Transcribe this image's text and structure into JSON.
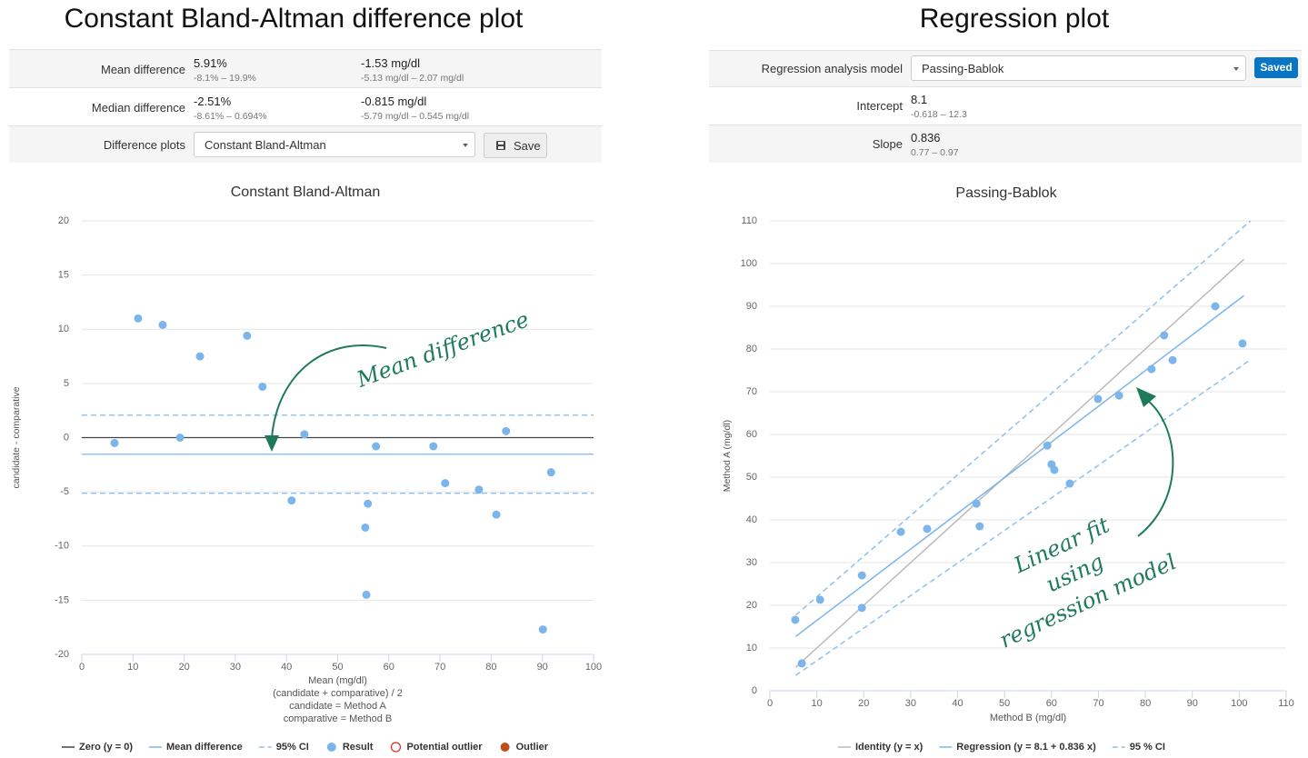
{
  "page_titles": [
    "Constant Bland-Altman difference plot",
    "Regression plot"
  ],
  "left_panel": {
    "rows": [
      {
        "label": "Mean difference",
        "value_pct": "5.91%",
        "ci_pct": "-8.1% – 19.9%",
        "value_abs": "-1.53 mg/dl",
        "ci_abs": "-5.13 mg/dl – 2.07 mg/dl"
      },
      {
        "label": "Median difference",
        "value_pct": "-2.51%",
        "ci_pct": "-8.61% – 0.694%",
        "value_abs": "-0.815 mg/dl",
        "ci_abs": "-5.79 mg/dl – 0.545 mg/dl"
      }
    ],
    "plot_label": "Difference plots",
    "plot_select": "Constant Bland-Altman",
    "button": "Save"
  },
  "right_panel": {
    "model_label": "Regression analysis model",
    "model_select": "Passing-Bablok",
    "button": "Saved",
    "rows": [
      {
        "label": "Intercept",
        "value": "8.1",
        "ci": "-0.618 – 12.3"
      },
      {
        "label": "Slope",
        "value": "0.836",
        "ci": "0.77 – 0.97"
      }
    ]
  },
  "chart_data": [
    {
      "type": "scatter",
      "title": "Constant Bland-Altman",
      "xlabel": [
        "Mean (mg/dl)",
        "(candidate + comparative) / 2",
        "candidate = Method A",
        "comparative = Method B"
      ],
      "ylabel": "candidate - comparative",
      "xlim": [
        0,
        100
      ],
      "ylim": [
        -20,
        20
      ],
      "xticks": [
        0,
        10,
        20,
        30,
        40,
        50,
        60,
        70,
        80,
        90,
        100
      ],
      "yticks": [
        -20,
        -15,
        -10,
        -5,
        0,
        5,
        10,
        15,
        20
      ],
      "grid": "y",
      "legend": "bottom",
      "lines": [
        {
          "name": "Zero (y = 0)",
          "color": "#444444",
          "style": "solid",
          "y": [
            0
          ]
        },
        {
          "name": "Mean difference",
          "color": "#7cb5ec",
          "style": "solid",
          "y": [
            -1.53
          ]
        },
        {
          "name": "95% CI",
          "color": "#8fc1ea",
          "style": "dashed",
          "y": [
            2.07,
            -5.13
          ]
        }
      ],
      "series": [
        {
          "name": "Result",
          "color": "#7cb5ec",
          "marker": "filled",
          "x": [
            6.4,
            11.0,
            15.8,
            19.2,
            23.1,
            32.3,
            35.3,
            41.0,
            43.5,
            55.9,
            55.4,
            55.6,
            57.5,
            68.7,
            71.0,
            77.6,
            81.0,
            82.9,
            90.1,
            91.7
          ],
          "values": [
            -0.5,
            11.0,
            10.4,
            0,
            7.5,
            9.4,
            4.7,
            -5.8,
            0.3,
            -6.1,
            -8.3,
            -14.5,
            -0.8,
            -0.8,
            -4.2,
            -4.8,
            -7.1,
            0.6,
            -17.7,
            -3.2
          ]
        },
        {
          "name": "Potential outlier",
          "color": "#e03030",
          "marker": "hollow"
        },
        {
          "name": "Outlier",
          "color": "#c0501a",
          "marker": "filled"
        }
      ],
      "annotation": [
        "Mean difference"
      ]
    },
    {
      "type": "scatter",
      "title": "Passing-Bablok",
      "xlabel": [
        "Method B (mg/dl)"
      ],
      "ylabel": "Method A (mg/dl)",
      "xlim": [
        0,
        110
      ],
      "ylim": [
        0,
        110
      ],
      "xticks": [
        0,
        10,
        20,
        30,
        40,
        50,
        60,
        70,
        80,
        90,
        100,
        110
      ],
      "yticks": [
        0,
        10,
        20,
        30,
        40,
        50,
        60,
        70,
        80,
        90,
        100,
        110
      ],
      "grid": "y",
      "legend": "bottom",
      "lines": [
        {
          "name": "Identity (y = x)",
          "color": "#bbbbbb",
          "style": "solid",
          "x": [
            5.5,
            101
          ],
          "values": [
            5.5,
            101
          ]
        },
        {
          "name": "Regression (y = 8.1 + 0.836 x)",
          "color": "#7cb5ec",
          "style": "solid",
          "x": [
            5.5,
            101
          ],
          "values": [
            12.7,
            92.5
          ]
        },
        {
          "name": "95 % CI",
          "color": "#8fc1ea",
          "style": "dashed",
          "x": [
            5.5,
            102.4
          ],
          "values": [
            17.7,
            110
          ]
        },
        {
          "color": "#8fc1ea",
          "style": "dashed",
          "x": [
            5.5,
            102
          ],
          "values": [
            3.6,
            77.2
          ]
        }
      ],
      "series": [
        {
          "color": "#7cb5ec",
          "marker": "filled",
          "x": [
            5.4,
            6.8,
            10.7,
            19.6,
            19.6,
            27.9,
            33.5,
            44.0,
            44.7,
            59.1,
            60.0,
            60.6,
            63.9,
            69.9,
            74.4,
            81.3,
            84.0,
            85.8,
            94.9,
            100.7
          ],
          "values": [
            16.6,
            6.4,
            21.3,
            27.0,
            19.4,
            37.2,
            37.9,
            43.8,
            38.5,
            57.4,
            53.0,
            51.7,
            48.5,
            68.3,
            69.1,
            75.3,
            83.2,
            77.4,
            90.0,
            81.3
          ]
        }
      ],
      "annotation": [
        "Linear fit",
        "using",
        "regression model"
      ]
    }
  ]
}
